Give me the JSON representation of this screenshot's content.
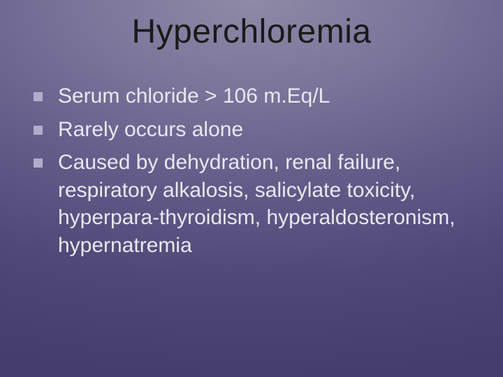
{
  "slide": {
    "title": "Hyperchloremia",
    "title_color": "#1a1a1a",
    "title_fontsize": 48,
    "background_gradient": {
      "type": "radial",
      "stops": [
        "#8f8aa6",
        "#7a749a",
        "#625b88",
        "#4f4777",
        "#453d6d"
      ]
    },
    "bullets": [
      {
        "text": "Serum chloride > 106 m.Eq/L"
      },
      {
        "text": "Rarely occurs alone"
      },
      {
        "text": "Caused by dehydration, renal failure, respiratory alkalosis, salicylate toxicity, hyperpara-thyroidism, hyperaldosteronism, hypernatremia"
      }
    ],
    "bullet_marker_color": "#b1accb",
    "bullet_text_color": "#e9e7f0",
    "bullet_fontsize": 30
  }
}
